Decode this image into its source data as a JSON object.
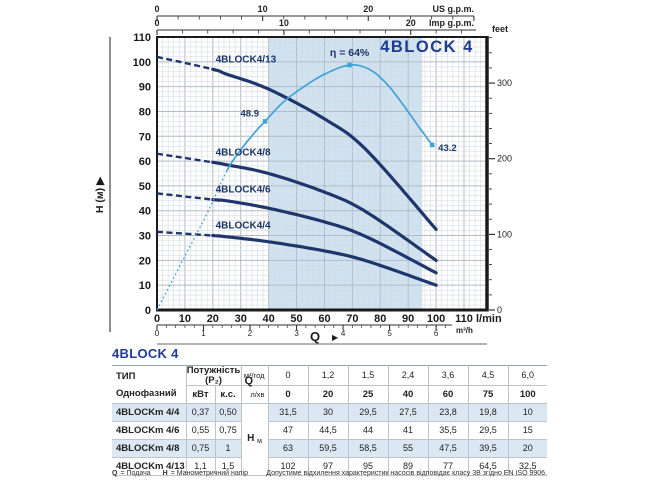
{
  "colors": {
    "curve_navy": "#1e366b",
    "label_navy": "#1b3668",
    "title_blue": "#1d3d93",
    "efficiency_blue": "#3fa3d7",
    "band_blue": "#cfe2f1",
    "grid_minor": "#d6dbe1",
    "grid_major": "#b3bbc4",
    "axis_black": "#1a1a1a",
    "text_dark": "#222222"
  },
  "chart": {
    "y_axis_label": "H (м)",
    "flow_axis_label": "Q",
    "arrow_glyph": "▶",
    "top_axis_us": {
      "unit": "US g.p.m.",
      "labeled_ticks": [
        0,
        10,
        20
      ],
      "lpm_per_unit": 3.785,
      "minor_step": 2,
      "max": 30
    },
    "top_axis_imp": {
      "unit": "Imp g.p.m.",
      "labeled_ticks": [
        0,
        10,
        20
      ],
      "lpm_per_unit": 4.546,
      "minor_step": 2,
      "max": 25
    },
    "left_ticks": [
      0,
      10,
      20,
      30,
      40,
      50,
      60,
      70,
      80,
      90,
      100,
      110
    ],
    "right_axis": {
      "unit": "feet",
      "labeled_ticks": [
        0,
        100,
        200,
        300
      ],
      "minor_step": 20,
      "max": 360,
      "m_per_unit": 0.3048
    },
    "bottom_axis_lpm": {
      "unit": "l/min",
      "labeled_ticks": [
        0,
        10,
        20,
        30,
        40,
        50,
        60,
        70,
        80,
        90,
        100,
        110
      ]
    },
    "bottom_axis_m3h": {
      "unit": "m³/h",
      "labeled_ticks": [
        0,
        1,
        2,
        3,
        4,
        5,
        6
      ],
      "lpm_per_unit": 16.667
    }
  },
  "chart_data": {
    "type": "line",
    "title": "4BLOCK 4",
    "xlabel": "Q (l/min)",
    "ylabel": "H (м)",
    "xlim": [
      0,
      118
    ],
    "ylim": [
      0,
      110
    ],
    "grid": true,
    "operating_band_lpm": [
      40,
      95
    ],
    "x_lpm": [
      0,
      20,
      25,
      40,
      60,
      75,
      100
    ],
    "dashed_below_lpm": 20,
    "series": [
      {
        "name": "4BLOCK4/13",
        "values": [
          102,
          97,
          95,
          89,
          77,
          64.5,
          32.5
        ]
      },
      {
        "name": "4BLOCK4/8",
        "values": [
          63,
          59.5,
          58.5,
          55,
          47.5,
          39.5,
          20
        ]
      },
      {
        "name": "4BLOCK4/6",
        "values": [
          47,
          44.5,
          44,
          41,
          35.5,
          29.5,
          15
        ]
      },
      {
        "name": "4BLOCK4/4",
        "values": [
          31.5,
          30,
          29.5,
          27.5,
          23.8,
          19.8,
          10
        ]
      }
    ],
    "efficiency_curve": {
      "max_label": "η = 64%",
      "dotted_until_q": 25,
      "points_q_h": [
        [
          0,
          0
        ],
        [
          6,
          13
        ],
        [
          12,
          26
        ],
        [
          18,
          39
        ],
        [
          25,
          56
        ],
        [
          30,
          64.5
        ],
        [
          35,
          71.5
        ],
        [
          38.7,
          76
        ],
        [
          45,
          83.5
        ],
        [
          52,
          89.5
        ],
        [
          60,
          95
        ],
        [
          69,
          98.7
        ],
        [
          76,
          97
        ],
        [
          82,
          91.5
        ],
        [
          88,
          83
        ],
        [
          94,
          73.5
        ],
        [
          98.6,
          66.5
        ]
      ],
      "markers": [
        {
          "q": 38.7,
          "h": 76,
          "label": "48.9",
          "pos": "left-above"
        },
        {
          "q": 69,
          "h": 98.7,
          "label": "η = 64%",
          "pos": "above"
        },
        {
          "q": 98.6,
          "h": 66.5,
          "label": "43.2",
          "pos": "right-below"
        }
      ]
    }
  },
  "table": {
    "title": "4BLOCK 4",
    "col_type_header": "ТИП",
    "col_type_subheader": "Однофазний",
    "power_header": "Потужність (P₂)",
    "power_unit_kw": "кВт",
    "power_unit_hp": "к.с.",
    "q_label": "Q",
    "q_unit_m3h": "м³/год",
    "q_unit_lmin": "л/хв",
    "head_label": "H",
    "head_unit": "м",
    "q_m3h": [
      "0",
      "1,2",
      "1,5",
      "2,4",
      "3,6",
      "4,5",
      "6,0"
    ],
    "q_lmin": [
      "0",
      "20",
      "25",
      "40",
      "60",
      "75",
      "100"
    ],
    "rows": [
      {
        "model": "4BLOCKm 4/4",
        "kw": "0,37",
        "hp": "0,50",
        "h": [
          "31,5",
          "30",
          "29,5",
          "27,5",
          "23,8",
          "19,8",
          "10"
        ]
      },
      {
        "model": "4BLOCKm 4/6",
        "kw": "0,55",
        "hp": "0,75",
        "h": [
          "47",
          "44,5",
          "44",
          "41",
          "35,5",
          "29,5",
          "15"
        ]
      },
      {
        "model": "4BLOCKm 4/8",
        "kw": "0,75",
        "hp": "1",
        "h": [
          "63",
          "59,5",
          "58,5",
          "55",
          "47,5",
          "39,5",
          "20"
        ]
      },
      {
        "model": "4BLOCKm 4/13",
        "kw": "1,1",
        "hp": "1,5",
        "h": [
          "102",
          "97",
          "95",
          "89",
          "77",
          "64,5",
          "32,5"
        ]
      }
    ]
  },
  "footer": {
    "q_symbol": "Q",
    "q_text": "= Подача",
    "h_symbol": "H",
    "h_text": "= Манометричний напір",
    "note": "Допустиме відхилення характеристик насосів відповідає класу 3B згідно EN ISO 9906."
  }
}
